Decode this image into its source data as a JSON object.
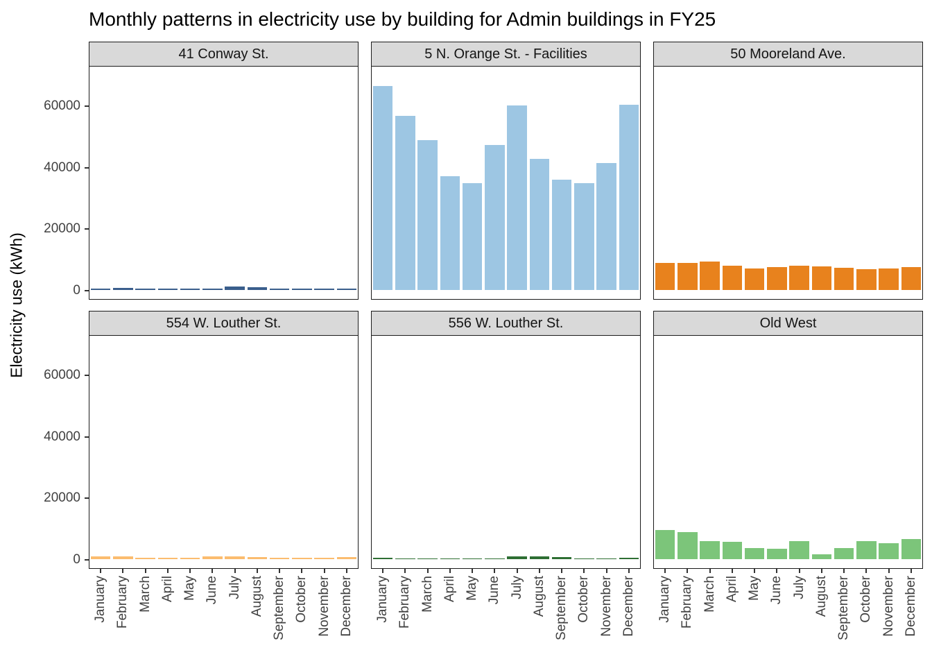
{
  "title": "Monthly patterns in electricity use by building for Admin buildings in FY25",
  "ylabel": "Electricity use (kWh)",
  "chart_data": {
    "type": "bar",
    "title": "Monthly patterns in electricity use by building for Admin buildings in FY25",
    "xlabel": "",
    "ylabel": "Electricity use (kWh)",
    "categories": [
      "January",
      "February",
      "March",
      "April",
      "May",
      "June",
      "July",
      "August",
      "September",
      "October",
      "November",
      "December"
    ],
    "y_ticks": [
      0,
      20000,
      40000,
      60000
    ],
    "ylim": [
      0,
      70000
    ],
    "grid": "off",
    "legend": "none",
    "facet_layout": {
      "rows": 2,
      "cols": 3
    },
    "facets": [
      {
        "label": "41 Conway St.",
        "color": "#3A5E8C",
        "values": [
          500,
          600,
          420,
          360,
          380,
          430,
          1200,
          900,
          360,
          420,
          380,
          460
        ]
      },
      {
        "label": "5 N. Orange St. - Facilities",
        "color": "#9DC6E3",
        "values": [
          66500,
          56700,
          48800,
          37000,
          34700,
          47200,
          60100,
          42700,
          35900,
          34700,
          41400,
          60300
        ]
      },
      {
        "label": "50 Mooreland Ave.",
        "color": "#E8821D",
        "values": [
          8800,
          8900,
          9300,
          8000,
          7000,
          7500,
          7800,
          7600,
          7300,
          6800,
          7000,
          7400
        ]
      },
      {
        "label": "554 W. Louther St.",
        "color": "#FBBC6F",
        "values": [
          900,
          1000,
          450,
          450,
          500,
          900,
          1000,
          750,
          500,
          400,
          500,
          650
        ]
      },
      {
        "label": "556 W. Louther St.",
        "color": "#2E6F33",
        "values": [
          400,
          300,
          300,
          200,
          150,
          250,
          900,
          800,
          650,
          200,
          300,
          400
        ]
      },
      {
        "label": "Old West",
        "color": "#7CC57A",
        "values": [
          9500,
          8700,
          5800,
          5700,
          3600,
          3400,
          5900,
          1600,
          3700,
          5800,
          5200,
          6500
        ]
      }
    ]
  }
}
